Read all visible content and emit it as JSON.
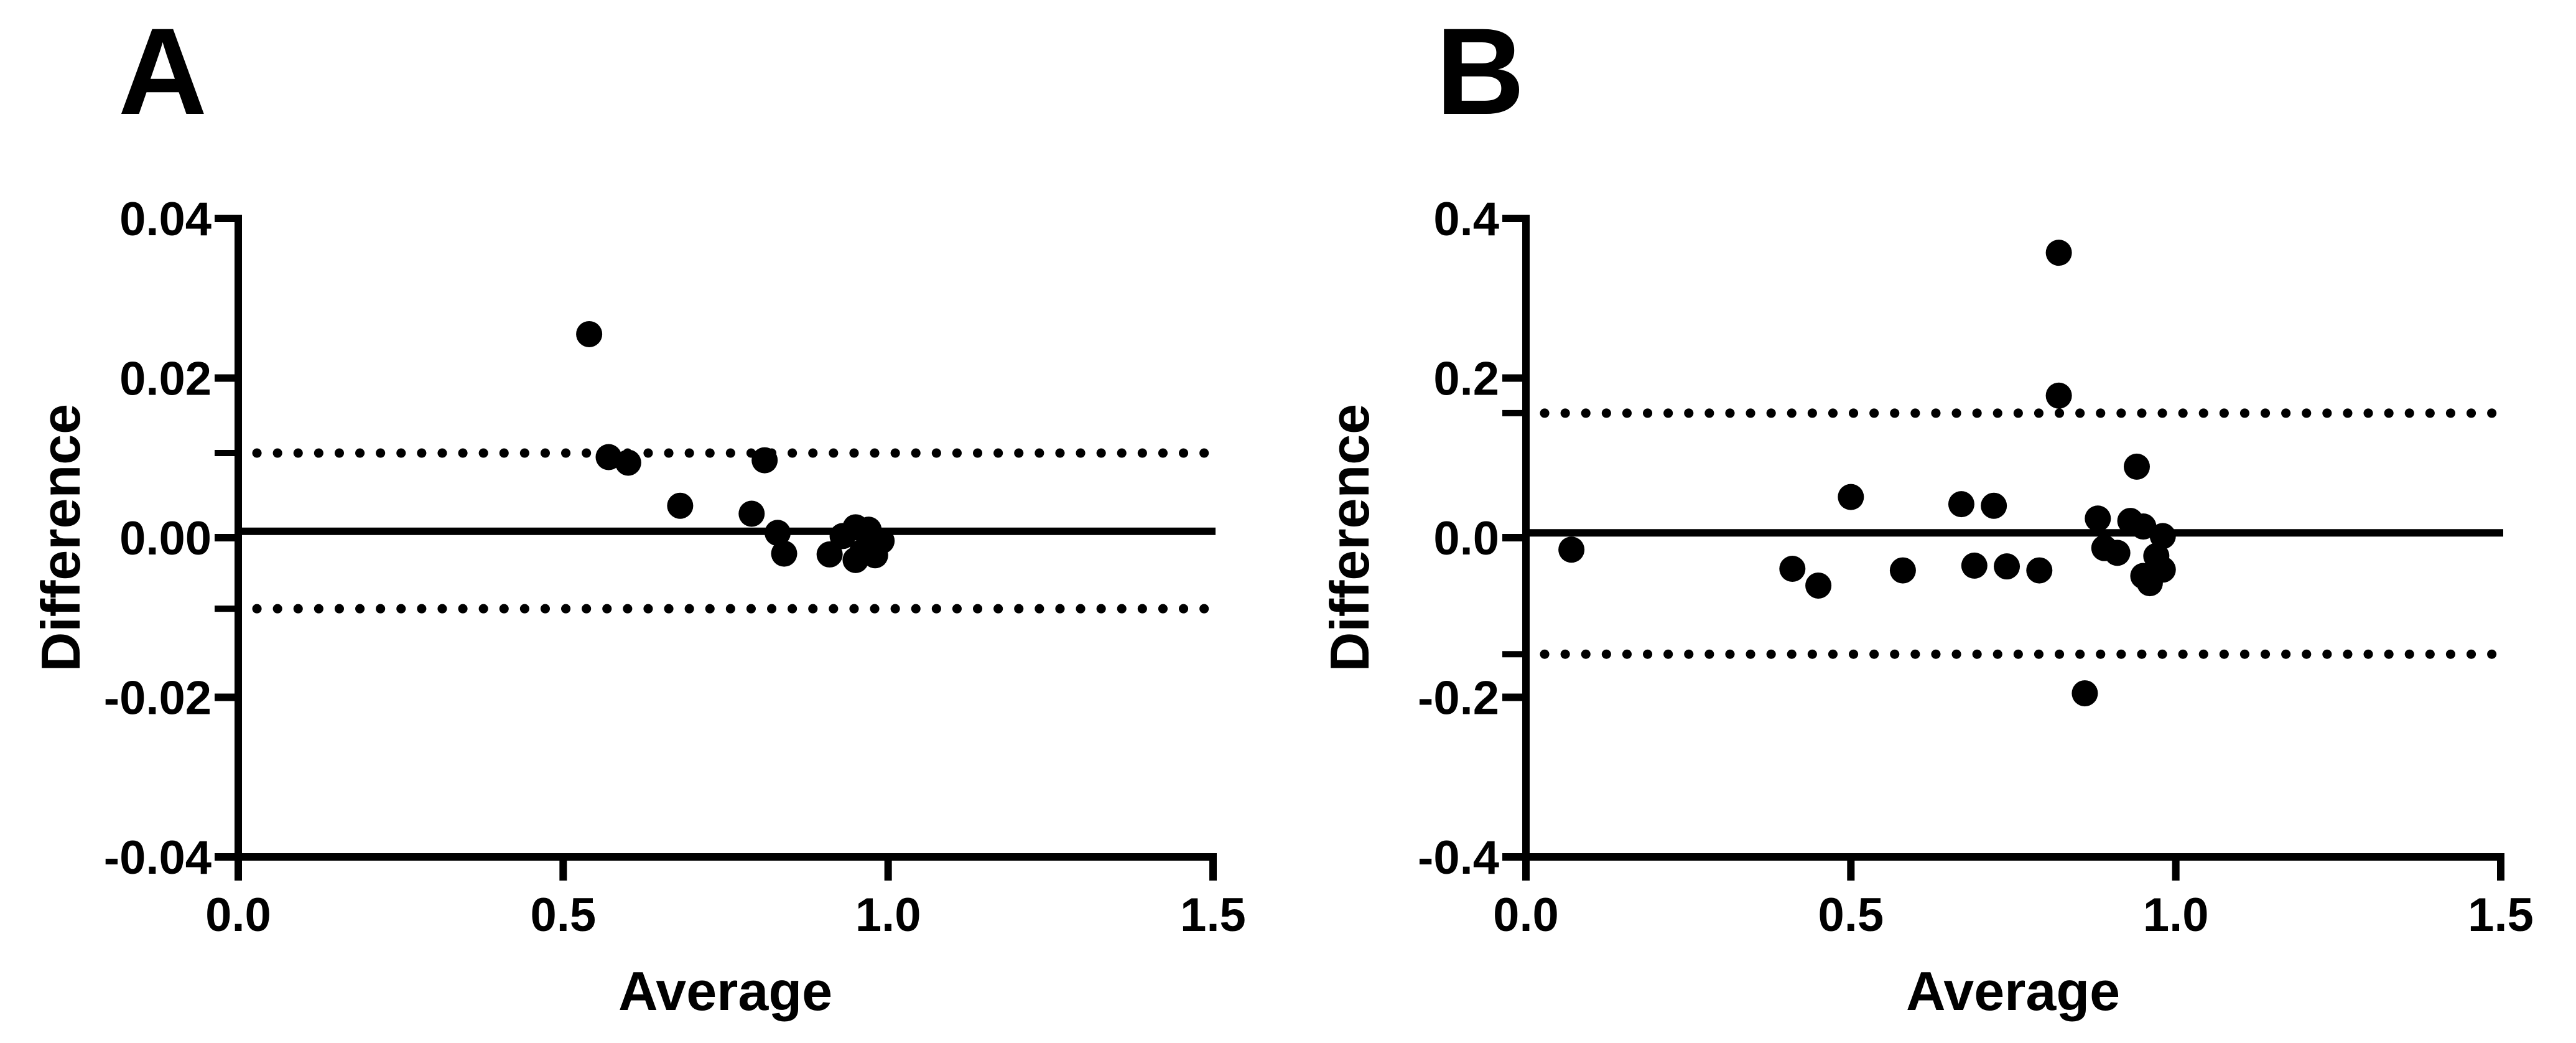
{
  "figure": {
    "background": "#ffffff",
    "ink_color": "#000000",
    "marker": "filled-circle",
    "line_styles": {
      "mean_line": "solid",
      "limits_lines": "dotted"
    }
  },
  "chart_data": [
    {
      "type": "scatter",
      "panel_label": "A",
      "xlabel": "Average",
      "ylabel": "Difference",
      "xlim": [
        0,
        1.5
      ],
      "ylim": [
        -0.04,
        0.04
      ],
      "x_ticks": [
        0,
        0.5,
        1.0,
        1.5
      ],
      "x_tick_labels": [
        "0.0",
        "0.5",
        "1.0",
        "1.5"
      ],
      "y_ticks": [
        0.04,
        0.02,
        0,
        -0.02,
        -0.04
      ],
      "y_tick_labels": [
        "0.04",
        "0.02",
        "0.00",
        "-0.02",
        "-0.04"
      ],
      "mean_line": 0.0008,
      "loa_upper": 0.0106,
      "loa_lower": -0.0089,
      "grid": false,
      "legend": null,
      "points": [
        [
          0.54,
          0.0255
        ],
        [
          0.57,
          0.0101
        ],
        [
          0.6,
          0.0094
        ],
        [
          0.68,
          0.004
        ],
        [
          0.81,
          0.0097
        ],
        [
          0.79,
          0.003
        ],
        [
          0.83,
          0.0006
        ],
        [
          0.84,
          -0.002
        ],
        [
          0.91,
          -0.0021
        ],
        [
          0.93,
          0.0002
        ],
        [
          0.95,
          0.0013
        ],
        [
          0.95,
          -0.0028
        ],
        [
          0.96,
          -0.0018
        ],
        [
          0.97,
          0.001
        ],
        [
          0.98,
          -0.0022
        ],
        [
          0.99,
          -0.0004
        ]
      ]
    },
    {
      "type": "scatter",
      "panel_label": "B",
      "xlabel": "Average",
      "ylabel": "Difference",
      "xlim": [
        0,
        1.5
      ],
      "ylim": [
        -0.4,
        0.4
      ],
      "x_ticks": [
        0,
        0.5,
        1.0,
        1.5
      ],
      "x_tick_labels": [
        "0.0",
        "0.5",
        "1.0",
        "1.5"
      ],
      "y_ticks": [
        0.4,
        0.2,
        0,
        -0.2,
        -0.4
      ],
      "y_tick_labels": [
        "0.4",
        "0.2",
        "0.0",
        "-0.2",
        "-0.4"
      ],
      "mean_line": 0.006,
      "loa_upper": 0.156,
      "loa_lower": -0.146,
      "grid": false,
      "legend": null,
      "points": [
        [
          0.07,
          -0.015
        ],
        [
          0.41,
          -0.039
        ],
        [
          0.45,
          -0.06
        ],
        [
          0.5,
          0.051
        ],
        [
          0.58,
          -0.041
        ],
        [
          0.67,
          0.042
        ],
        [
          0.72,
          0.04
        ],
        [
          0.69,
          -0.035
        ],
        [
          0.74,
          -0.036
        ],
        [
          0.79,
          -0.041
        ],
        [
          0.82,
          0.357
        ],
        [
          0.82,
          0.178
        ],
        [
          0.94,
          0.089
        ],
        [
          0.88,
          0.024
        ],
        [
          0.93,
          0.021
        ],
        [
          0.95,
          0.014
        ],
        [
          0.98,
          0.002
        ],
        [
          0.89,
          -0.013
        ],
        [
          0.91,
          -0.019
        ],
        [
          0.97,
          -0.023
        ],
        [
          0.95,
          -0.048
        ],
        [
          0.98,
          -0.04
        ],
        [
          0.96,
          -0.057
        ],
        [
          0.86,
          -0.195
        ]
      ]
    }
  ]
}
